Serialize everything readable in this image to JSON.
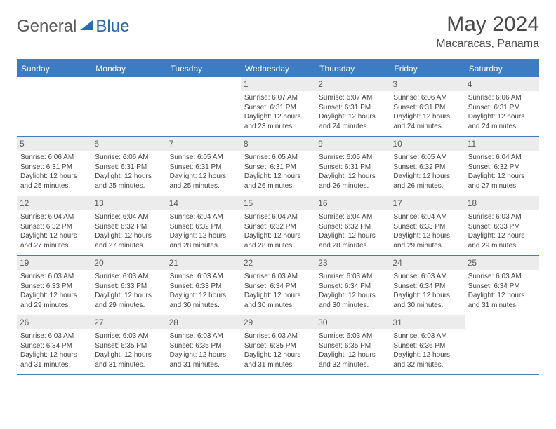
{
  "logo": {
    "text1": "General",
    "text2": "Blue"
  },
  "title": "May 2024",
  "location": "Macaracas, Panama",
  "colors": {
    "header_bg": "#3d7cc2",
    "daynum_bg": "#ececec",
    "text": "#4a4a4a"
  },
  "day_headers": [
    "Sunday",
    "Monday",
    "Tuesday",
    "Wednesday",
    "Thursday",
    "Friday",
    "Saturday"
  ],
  "weeks": [
    [
      {
        "n": "",
        "sunrise": "",
        "sunset": "",
        "daylight": ""
      },
      {
        "n": "",
        "sunrise": "",
        "sunset": "",
        "daylight": ""
      },
      {
        "n": "",
        "sunrise": "",
        "sunset": "",
        "daylight": ""
      },
      {
        "n": "1",
        "sunrise": "Sunrise: 6:07 AM",
        "sunset": "Sunset: 6:31 PM",
        "daylight": "Daylight: 12 hours and 23 minutes."
      },
      {
        "n": "2",
        "sunrise": "Sunrise: 6:07 AM",
        "sunset": "Sunset: 6:31 PM",
        "daylight": "Daylight: 12 hours and 24 minutes."
      },
      {
        "n": "3",
        "sunrise": "Sunrise: 6:06 AM",
        "sunset": "Sunset: 6:31 PM",
        "daylight": "Daylight: 12 hours and 24 minutes."
      },
      {
        "n": "4",
        "sunrise": "Sunrise: 6:06 AM",
        "sunset": "Sunset: 6:31 PM",
        "daylight": "Daylight: 12 hours and 24 minutes."
      }
    ],
    [
      {
        "n": "5",
        "sunrise": "Sunrise: 6:06 AM",
        "sunset": "Sunset: 6:31 PM",
        "daylight": "Daylight: 12 hours and 25 minutes."
      },
      {
        "n": "6",
        "sunrise": "Sunrise: 6:06 AM",
        "sunset": "Sunset: 6:31 PM",
        "daylight": "Daylight: 12 hours and 25 minutes."
      },
      {
        "n": "7",
        "sunrise": "Sunrise: 6:05 AM",
        "sunset": "Sunset: 6:31 PM",
        "daylight": "Daylight: 12 hours and 25 minutes."
      },
      {
        "n": "8",
        "sunrise": "Sunrise: 6:05 AM",
        "sunset": "Sunset: 6:31 PM",
        "daylight": "Daylight: 12 hours and 26 minutes."
      },
      {
        "n": "9",
        "sunrise": "Sunrise: 6:05 AM",
        "sunset": "Sunset: 6:31 PM",
        "daylight": "Daylight: 12 hours and 26 minutes."
      },
      {
        "n": "10",
        "sunrise": "Sunrise: 6:05 AM",
        "sunset": "Sunset: 6:32 PM",
        "daylight": "Daylight: 12 hours and 26 minutes."
      },
      {
        "n": "11",
        "sunrise": "Sunrise: 6:04 AM",
        "sunset": "Sunset: 6:32 PM",
        "daylight": "Daylight: 12 hours and 27 minutes."
      }
    ],
    [
      {
        "n": "12",
        "sunrise": "Sunrise: 6:04 AM",
        "sunset": "Sunset: 6:32 PM",
        "daylight": "Daylight: 12 hours and 27 minutes."
      },
      {
        "n": "13",
        "sunrise": "Sunrise: 6:04 AM",
        "sunset": "Sunset: 6:32 PM",
        "daylight": "Daylight: 12 hours and 27 minutes."
      },
      {
        "n": "14",
        "sunrise": "Sunrise: 6:04 AM",
        "sunset": "Sunset: 6:32 PM",
        "daylight": "Daylight: 12 hours and 28 minutes."
      },
      {
        "n": "15",
        "sunrise": "Sunrise: 6:04 AM",
        "sunset": "Sunset: 6:32 PM",
        "daylight": "Daylight: 12 hours and 28 minutes."
      },
      {
        "n": "16",
        "sunrise": "Sunrise: 6:04 AM",
        "sunset": "Sunset: 6:32 PM",
        "daylight": "Daylight: 12 hours and 28 minutes."
      },
      {
        "n": "17",
        "sunrise": "Sunrise: 6:04 AM",
        "sunset": "Sunset: 6:33 PM",
        "daylight": "Daylight: 12 hours and 29 minutes."
      },
      {
        "n": "18",
        "sunrise": "Sunrise: 6:03 AM",
        "sunset": "Sunset: 6:33 PM",
        "daylight": "Daylight: 12 hours and 29 minutes."
      }
    ],
    [
      {
        "n": "19",
        "sunrise": "Sunrise: 6:03 AM",
        "sunset": "Sunset: 6:33 PM",
        "daylight": "Daylight: 12 hours and 29 minutes."
      },
      {
        "n": "20",
        "sunrise": "Sunrise: 6:03 AM",
        "sunset": "Sunset: 6:33 PM",
        "daylight": "Daylight: 12 hours and 29 minutes."
      },
      {
        "n": "21",
        "sunrise": "Sunrise: 6:03 AM",
        "sunset": "Sunset: 6:33 PM",
        "daylight": "Daylight: 12 hours and 30 minutes."
      },
      {
        "n": "22",
        "sunrise": "Sunrise: 6:03 AM",
        "sunset": "Sunset: 6:34 PM",
        "daylight": "Daylight: 12 hours and 30 minutes."
      },
      {
        "n": "23",
        "sunrise": "Sunrise: 6:03 AM",
        "sunset": "Sunset: 6:34 PM",
        "daylight": "Daylight: 12 hours and 30 minutes."
      },
      {
        "n": "24",
        "sunrise": "Sunrise: 6:03 AM",
        "sunset": "Sunset: 6:34 PM",
        "daylight": "Daylight: 12 hours and 30 minutes."
      },
      {
        "n": "25",
        "sunrise": "Sunrise: 6:03 AM",
        "sunset": "Sunset: 6:34 PM",
        "daylight": "Daylight: 12 hours and 31 minutes."
      }
    ],
    [
      {
        "n": "26",
        "sunrise": "Sunrise: 6:03 AM",
        "sunset": "Sunset: 6:34 PM",
        "daylight": "Daylight: 12 hours and 31 minutes."
      },
      {
        "n": "27",
        "sunrise": "Sunrise: 6:03 AM",
        "sunset": "Sunset: 6:35 PM",
        "daylight": "Daylight: 12 hours and 31 minutes."
      },
      {
        "n": "28",
        "sunrise": "Sunrise: 6:03 AM",
        "sunset": "Sunset: 6:35 PM",
        "daylight": "Daylight: 12 hours and 31 minutes."
      },
      {
        "n": "29",
        "sunrise": "Sunrise: 6:03 AM",
        "sunset": "Sunset: 6:35 PM",
        "daylight": "Daylight: 12 hours and 31 minutes."
      },
      {
        "n": "30",
        "sunrise": "Sunrise: 6:03 AM",
        "sunset": "Sunset: 6:35 PM",
        "daylight": "Daylight: 12 hours and 32 minutes."
      },
      {
        "n": "31",
        "sunrise": "Sunrise: 6:03 AM",
        "sunset": "Sunset: 6:36 PM",
        "daylight": "Daylight: 12 hours and 32 minutes."
      },
      {
        "n": "",
        "sunrise": "",
        "sunset": "",
        "daylight": ""
      }
    ]
  ]
}
